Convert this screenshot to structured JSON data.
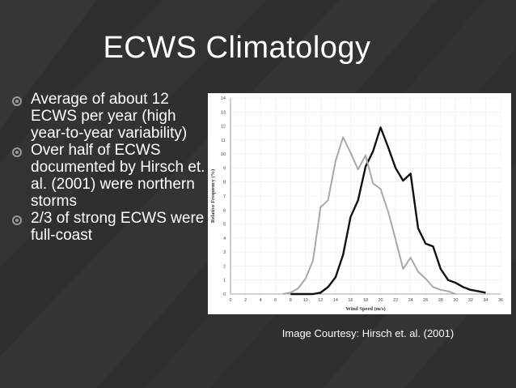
{
  "slide": {
    "title": "ECWS Climatology",
    "bullets": [
      "Average of about 12 ECWS per year (high year-to-year variability)",
      "Over half of ECWS documented by Hirsch et. al. (2001) were northern storms",
      "2/3 of strong ECWS were full-coast"
    ],
    "caption": "Image Courtesy: Hirsch et. al. (2001)",
    "colors": {
      "background": "#2f2f2f",
      "text": "#ffffff",
      "bullet": "#9a9a9a"
    }
  },
  "chart_data": {
    "type": "line",
    "title": "",
    "xlabel": "Wind Speed (m/s)",
    "ylabel": "Relative Frequency (%)",
    "xlim": [
      0,
      36
    ],
    "ylim": [
      0,
      14
    ],
    "xticks": [
      "0",
      "2",
      "4",
      "6",
      "8",
      "10",
      "12",
      "14",
      "16",
      "18",
      "20",
      "22",
      "24",
      "26",
      "28",
      "30",
      "32",
      "34",
      "36"
    ],
    "yticks": [
      "0",
      "1",
      "2",
      "3",
      "4",
      "5",
      "6",
      "7",
      "8",
      "9",
      "10",
      "11",
      "12",
      "13",
      "14"
    ],
    "grid": true,
    "series": [
      {
        "color": "#111111",
        "x": [
          8,
          10,
          11,
          12,
          13,
          14,
          15,
          16,
          17,
          18,
          19,
          20,
          21,
          22,
          23,
          24,
          25,
          26,
          27,
          28,
          29,
          30,
          31,
          32,
          33,
          34
        ],
        "y": [
          0,
          0,
          0,
          0.1,
          0.5,
          1.2,
          2.8,
          5.5,
          6.7,
          9.1,
          10.2,
          11.9,
          10.5,
          9.0,
          8.1,
          8.6,
          4.7,
          3.6,
          3.4,
          1.8,
          1.0,
          0.8,
          0.5,
          0.3,
          0.2,
          0.1
        ]
      },
      {
        "color": "#a8a8a8",
        "x": [
          7,
          8,
          9,
          10,
          11,
          12,
          13,
          14,
          15,
          16,
          17,
          18,
          19,
          20,
          21,
          22,
          23,
          24,
          25,
          26,
          27,
          28,
          29,
          30
        ],
        "y": [
          0,
          0.1,
          0.4,
          1.1,
          2.4,
          6.2,
          6.7,
          9.5,
          11.2,
          10.1,
          8.9,
          9.9,
          7.9,
          7.5,
          5.9,
          3.9,
          1.8,
          2.6,
          1.6,
          1.1,
          0.5,
          0.3,
          0.2,
          0
        ]
      }
    ]
  }
}
